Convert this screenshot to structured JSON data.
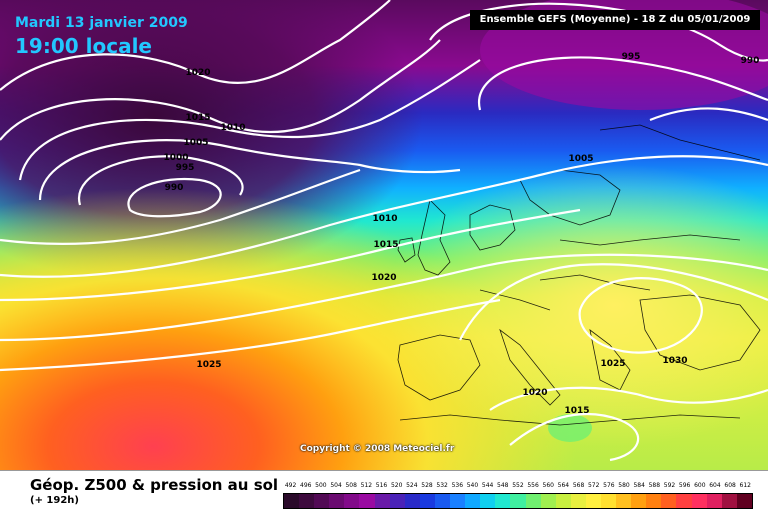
{
  "header": {
    "date": "Mardi 13 janvier 2009",
    "time": "19:00 locale",
    "run_info": "Ensemble GEFS (Moyenne)  -  18 Z du 05/01/2009"
  },
  "map": {
    "isobar_labels": [
      "1020",
      "1015",
      "1010",
      "1005",
      "1000",
      "995",
      "990",
      "995",
      "990",
      "1005",
      "1010",
      "1015",
      "1020",
      "1025",
      "1020",
      "1015",
      "1025",
      "1030",
      "1000"
    ],
    "copyright": "Copyright © 2008 Meteociel.fr"
  },
  "legend": {
    "title": "Géop. Z500 & pression au sol",
    "subtitle": "(+ 192h)",
    "scale_values": [
      "492",
      "496",
      "500",
      "504",
      "508",
      "512",
      "516",
      "520",
      "524",
      "528",
      "532",
      "536",
      "540",
      "544",
      "548",
      "552",
      "556",
      "560",
      "564",
      "568",
      "572",
      "576",
      "580",
      "584",
      "588",
      "592",
      "596",
      "600",
      "604",
      "608",
      "612"
    ],
    "scale_colors": [
      "#2a0a2a",
      "#3d0a3d",
      "#520a55",
      "#6a0a70",
      "#820a8a",
      "#9a0aa2",
      "#6a1aa8",
      "#4a22b8",
      "#2a2ac8",
      "#1a3ae0",
      "#1a5af0",
      "#1a80ff",
      "#10a8ff",
      "#10d0f0",
      "#20e8d0",
      "#40f0a0",
      "#70f070",
      "#a0f050",
      "#c8f040",
      "#e8f040",
      "#fff040",
      "#ffe030",
      "#ffc020",
      "#ffa010",
      "#ff8010",
      "#ff6020",
      "#ff4040",
      "#ff3060",
      "#e02060",
      "#a01040",
      "#600020"
    ]
  }
}
